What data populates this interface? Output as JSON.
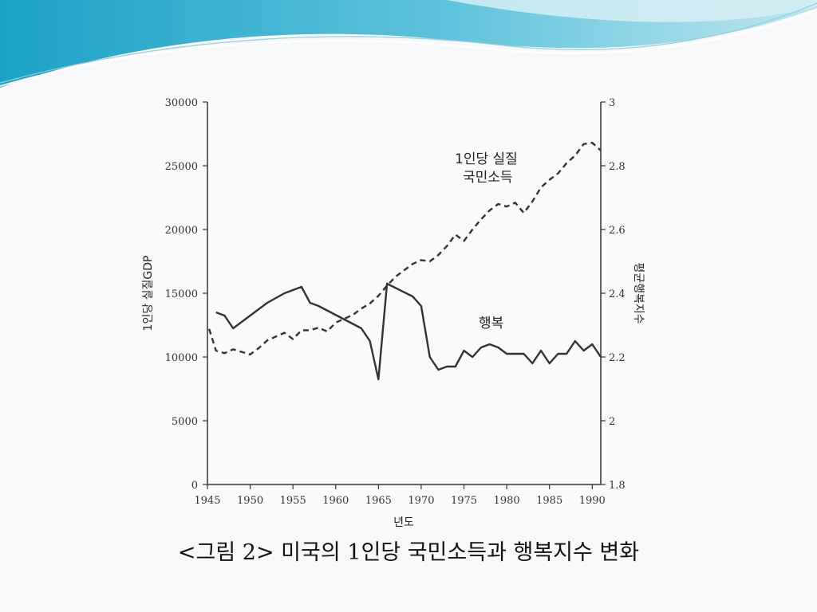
{
  "caption": "<그림 2> 미국의 1인당 국민소득과 행복지수 변화",
  "colors": {
    "background": "#f7f8fa",
    "wave_dark": "#29aacb",
    "wave_light": "#a9dbe7",
    "line": "#333333"
  },
  "chart_data": {
    "type": "line",
    "title": "",
    "xlabel": "년도",
    "ylabel_left": "1인당 실질GDP",
    "ylabel_right": "평균행복지수",
    "xlim": [
      1945,
      1991
    ],
    "ylim_left": [
      0,
      30000
    ],
    "ylim_right": [
      1.8,
      3.0
    ],
    "x_ticks": [
      "1945",
      "1950",
      "1955",
      "1960",
      "1965",
      "1970",
      "1975",
      "1980",
      "1985",
      "1990"
    ],
    "y_left_ticks": [
      "0",
      "5000",
      "10000",
      "15000",
      "20000",
      "25000",
      "30000"
    ],
    "y_right_ticks": [
      "1.8",
      "2",
      "2.2",
      "2.4",
      "2.6",
      "2.8",
      "3"
    ],
    "grid": false,
    "series": [
      {
        "name": "1인당 실질 국민소득",
        "axis": "left",
        "style": "dashed",
        "points": [
          [
            1945.2,
            12200
          ],
          [
            1946,
            10500
          ],
          [
            1947,
            10300
          ],
          [
            1948,
            10600
          ],
          [
            1949,
            10400
          ],
          [
            1950,
            10200
          ],
          [
            1951,
            10700
          ],
          [
            1952,
            11300
          ],
          [
            1953,
            11600
          ],
          [
            1954,
            11900
          ],
          [
            1955,
            11400
          ],
          [
            1956,
            12100
          ],
          [
            1957,
            12100
          ],
          [
            1958,
            12300
          ],
          [
            1959,
            12000
          ],
          [
            1960,
            12700
          ],
          [
            1961,
            13000
          ],
          [
            1962,
            13300
          ],
          [
            1963,
            13800
          ],
          [
            1964,
            14200
          ],
          [
            1965,
            14800
          ],
          [
            1966,
            15600
          ],
          [
            1967,
            16300
          ],
          [
            1968,
            16800
          ],
          [
            1969,
            17300
          ],
          [
            1970,
            17600
          ],
          [
            1971,
            17500
          ],
          [
            1972,
            18000
          ],
          [
            1973,
            18700
          ],
          [
            1974,
            19600
          ],
          [
            1975,
            19100
          ],
          [
            1976,
            20000
          ],
          [
            1977,
            20800
          ],
          [
            1978,
            21500
          ],
          [
            1979,
            22000
          ],
          [
            1980,
            21800
          ],
          [
            1981,
            22100
          ],
          [
            1982,
            21300
          ],
          [
            1983,
            22200
          ],
          [
            1984,
            23300
          ],
          [
            1985,
            23900
          ],
          [
            1986,
            24400
          ],
          [
            1987,
            25200
          ],
          [
            1988,
            25800
          ],
          [
            1989,
            26700
          ],
          [
            1990,
            26800
          ],
          [
            1991,
            26200
          ]
        ]
      },
      {
        "name": "행복",
        "axis": "right",
        "style": "solid",
        "points": [
          [
            1946,
            2.34
          ],
          [
            1947,
            2.33
          ],
          [
            1948,
            2.29
          ],
          [
            1952,
            2.37
          ],
          [
            1954,
            2.4
          ],
          [
            1956,
            2.42
          ],
          [
            1957,
            2.37
          ],
          [
            1958,
            2.36
          ],
          [
            1963,
            2.29
          ],
          [
            1964,
            2.25
          ],
          [
            1965,
            2.13
          ],
          [
            1966,
            2.43
          ],
          [
            1969,
            2.39
          ],
          [
            1970,
            2.36
          ],
          [
            1971,
            2.2
          ],
          [
            1972,
            2.16
          ],
          [
            1973,
            2.17
          ],
          [
            1974,
            2.17
          ],
          [
            1975,
            2.22
          ],
          [
            1976,
            2.2
          ],
          [
            1977,
            2.23
          ],
          [
            1978,
            2.24
          ],
          [
            1979,
            2.23
          ],
          [
            1980,
            2.21
          ],
          [
            1981,
            2.21
          ],
          [
            1982,
            2.21
          ],
          [
            1983,
            2.18
          ],
          [
            1984,
            2.22
          ],
          [
            1985,
            2.18
          ],
          [
            1986,
            2.21
          ],
          [
            1987,
            2.21
          ],
          [
            1988,
            2.25
          ],
          [
            1989,
            2.22
          ],
          [
            1990,
            2.24
          ],
          [
            1991,
            2.2
          ]
        ]
      }
    ],
    "annotations": [
      {
        "series": "1인당 실질 국민소득",
        "lines": [
          "1인당 실질",
          "국민소득"
        ]
      },
      {
        "series": "행복",
        "lines": [
          "행복"
        ]
      }
    ]
  }
}
